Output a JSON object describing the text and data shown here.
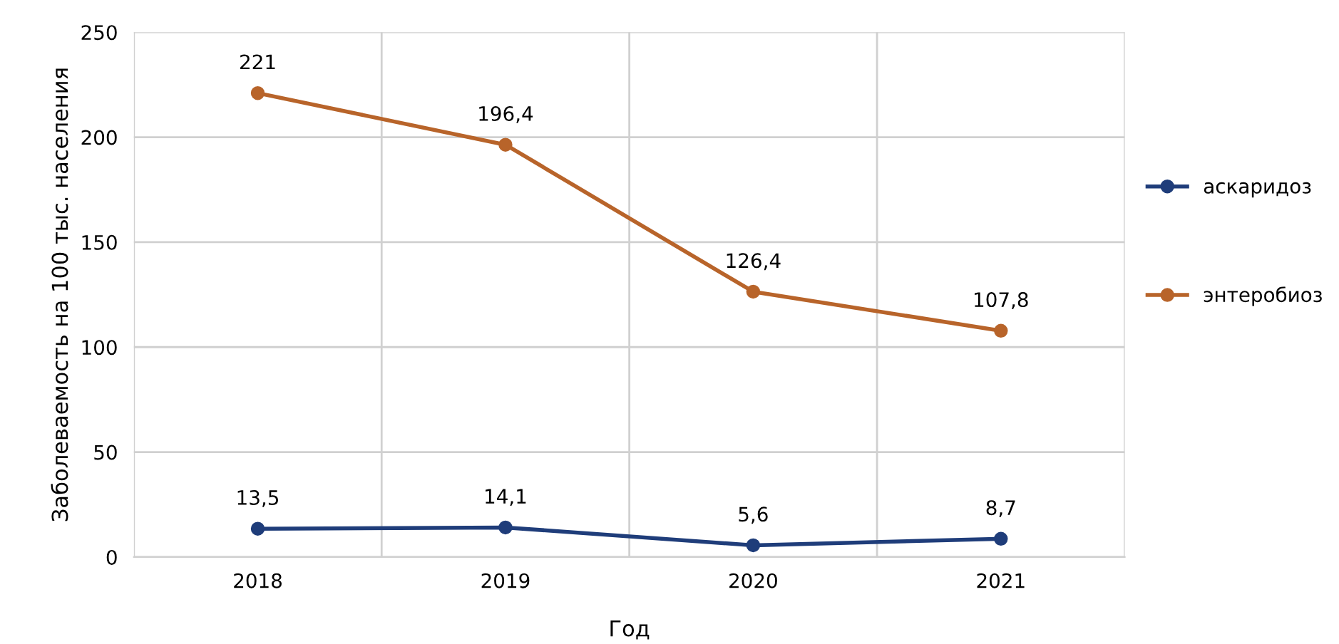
{
  "chart_data": {
    "type": "line",
    "xlabel": "Год",
    "ylabel": "Заболеваемость на 100 тыс. населения",
    "categories": [
      "2018",
      "2019",
      "2020",
      "2021"
    ],
    "series": [
      {
        "name": "аскаридоз",
        "color": "#1f3d7a",
        "values": [
          13.5,
          14.1,
          5.6,
          8.7
        ],
        "value_labels": [
          "13,5",
          "14,1",
          "5,6",
          "8,7"
        ]
      },
      {
        "name": "энтеробиоз",
        "color": "#b8642a",
        "values": [
          221,
          196.4,
          126.4,
          107.8
        ],
        "value_labels": [
          "221",
          "196,4",
          "126,4",
          "107,8"
        ]
      }
    ],
    "ylim": [
      0,
      250
    ],
    "yticks": [
      0,
      50,
      100,
      150,
      200,
      250
    ],
    "grid": true,
    "legend": "right",
    "marker": "circle",
    "line_style": "solid"
  }
}
